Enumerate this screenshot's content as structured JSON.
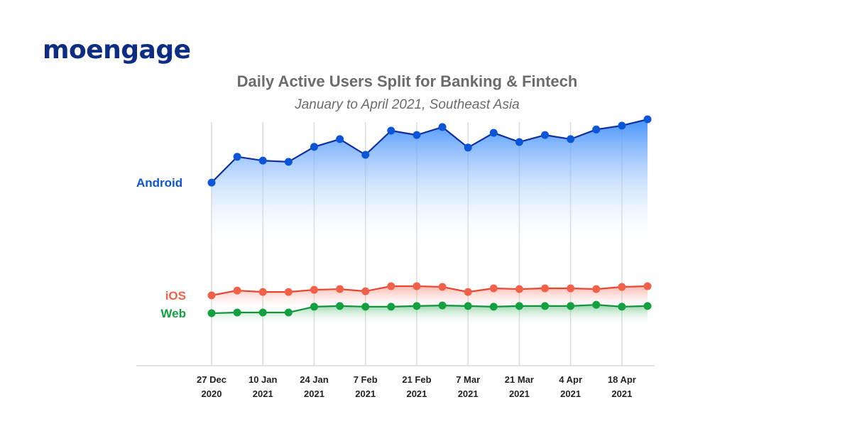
{
  "brand": {
    "logo_text": "moengage",
    "logo_color": "#0c2d83"
  },
  "chart_data": {
    "type": "line",
    "title": "Daily Active Users Split for Banking & Fintech",
    "subtitle": "January to April 2021, Southeast Asia",
    "xlabel": "",
    "ylabel": "",
    "grid": "vertical",
    "x_ticks": [
      {
        "line1": "27 Dec",
        "line2": "2020"
      },
      {
        "line1": "10 Jan",
        "line2": "2021"
      },
      {
        "line1": "24 Jan",
        "line2": "2021"
      },
      {
        "line1": "7 Feb",
        "line2": "2021"
      },
      {
        "line1": "21 Feb",
        "line2": "2021"
      },
      {
        "line1": "7 Mar",
        "line2": "2021"
      },
      {
        "line1": "21 Mar",
        "line2": "2021"
      },
      {
        "line1": "4 Apr",
        "line2": "2021"
      },
      {
        "line1": "18 Apr",
        "line2": "2021"
      }
    ],
    "x": [
      "2020-12-27",
      "2021-01-03",
      "2021-01-10",
      "2021-01-17",
      "2021-01-24",
      "2021-01-31",
      "2021-02-07",
      "2021-02-14",
      "2021-02-21",
      "2021-02-28",
      "2021-03-07",
      "2021-03-14",
      "2021-03-21",
      "2021-03-28",
      "2021-04-04",
      "2021-04-11",
      "2021-04-18",
      "2021-04-25"
    ],
    "ylim": [
      0,
      100
    ],
    "series": [
      {
        "name": "Android",
        "color": "#0b55d8",
        "line_color": "#0d2fa0",
        "values": [
          68.5,
          79.2,
          77.6,
          77.1,
          83.3,
          86.5,
          80.0,
          90.0,
          88.2,
          91.5,
          83.0,
          89.1,
          85.3,
          88.2,
          86.5,
          90.5,
          92.1,
          94.7
        ]
      },
      {
        "name": "iOS",
        "color": "#f2604a",
        "line_color": "#e8452f",
        "values": [
          21.8,
          23.8,
          23.2,
          23.2,
          24.1,
          24.4,
          23.5,
          25.6,
          25.6,
          25.3,
          23.2,
          24.7,
          24.4,
          24.7,
          24.7,
          24.4,
          25.3,
          25.6
        ]
      },
      {
        "name": "Web",
        "color": "#13a040",
        "line_color": "#0f9438",
        "values": [
          14.4,
          14.7,
          14.7,
          14.7,
          17.1,
          17.4,
          17.1,
          17.1,
          17.4,
          17.6,
          17.4,
          17.1,
          17.4,
          17.4,
          17.4,
          17.9,
          17.1,
          17.4
        ]
      }
    ]
  }
}
